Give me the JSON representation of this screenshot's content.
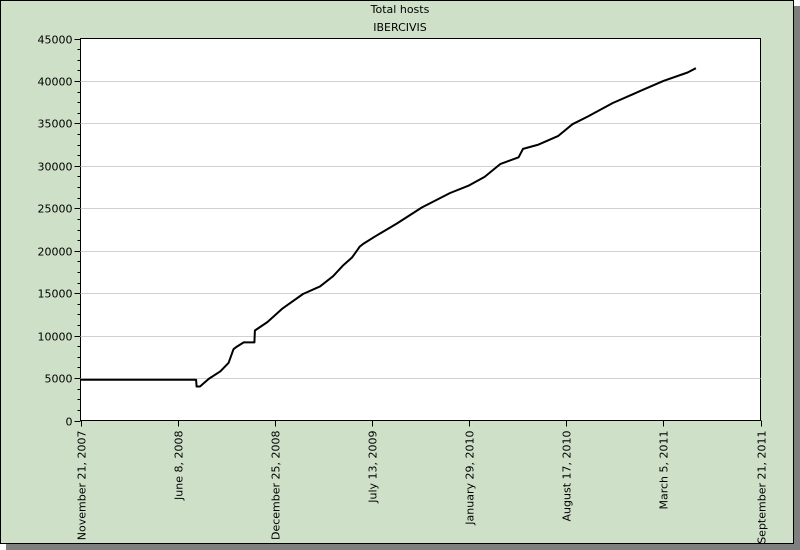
{
  "chart_data": {
    "type": "line",
    "title": "Total hosts",
    "subtitle": "IBERCIVIS",
    "xlabel": "",
    "ylabel": "",
    "ylim": [
      0,
      45000
    ],
    "yticks": [
      0,
      5000,
      10000,
      15000,
      20000,
      25000,
      30000,
      35000,
      40000,
      45000
    ],
    "xlim": [
      "2007-11-21",
      "2011-09-21"
    ],
    "xticks": [
      "November 21, 2007",
      "June 8, 2008",
      "December 25, 2008",
      "July 13, 2009",
      "January 29, 2010",
      "August 17, 2010",
      "March 5, 2011",
      "September 21, 2011"
    ],
    "xtick_dates": [
      "2007-11-21",
      "2008-06-08",
      "2008-12-25",
      "2009-07-13",
      "2010-01-29",
      "2010-08-17",
      "2011-03-05",
      "2011-09-21"
    ],
    "grid": true,
    "legend": "none",
    "line_color": "#000000",
    "series": [
      {
        "x": [
          "2007-11-21",
          "2008-07-16",
          "2008-07-17",
          "2008-07-24",
          "2008-08-11",
          "2008-09-04",
          "2008-09-21",
          "2008-10-01",
          "2008-10-08",
          "2008-10-22",
          "2008-11-13",
          "2008-11-14",
          "2008-12-10",
          "2009-01-10",
          "2009-02-21",
          "2009-03-28",
          "2009-04-24",
          "2009-05-15",
          "2009-06-02",
          "2009-06-12",
          "2009-06-18",
          "2009-06-25",
          "2009-07-20",
          "2009-09-02",
          "2009-10-24",
          "2009-12-21",
          "2010-01-29",
          "2010-03-02",
          "2010-04-03",
          "2010-05-11",
          "2010-05-20",
          "2010-06-21",
          "2010-07-31",
          "2010-08-30",
          "2010-09-30",
          "2010-11-21",
          "2011-01-16",
          "2011-03-05",
          "2011-04-24",
          "2011-05-11"
        ],
        "y": [
          4800,
          4800,
          4000,
          4000,
          4900,
          5800,
          6800,
          8400,
          8700,
          9200,
          9200,
          10600,
          11600,
          13200,
          14900,
          15800,
          17000,
          18300,
          19200,
          20000,
          20500,
          20800,
          21700,
          23200,
          25100,
          26800,
          27700,
          28700,
          30200,
          31000,
          32000,
          32500,
          33500,
          34900,
          35800,
          37400,
          38800,
          40000,
          41000,
          41500
        ]
      }
    ]
  }
}
